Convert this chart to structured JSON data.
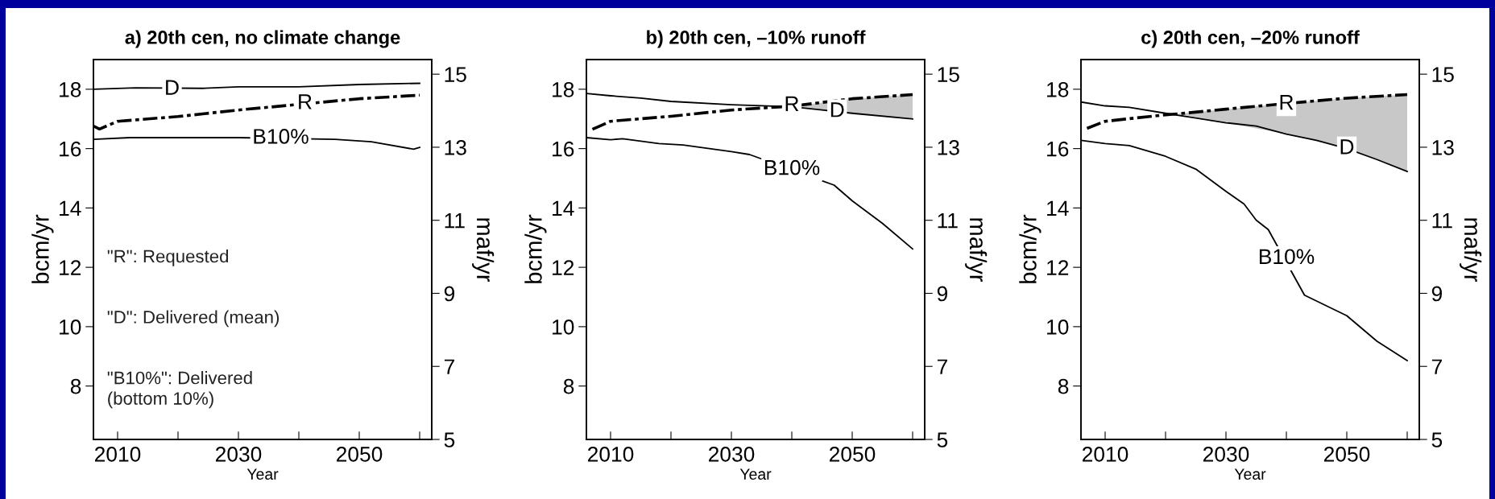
{
  "chart_data": [
    {
      "type": "line",
      "title": "a) 20th cen, no climate change",
      "xlabel": "Year",
      "ylabel": "bcm/yr",
      "y2label": "maf/yr",
      "xlim": [
        2006,
        2062
      ],
      "xticks": [
        2010,
        {
          "value": 2020,
          "label": null
        },
        2030,
        {
          "value": 2040,
          "label": null
        },
        2050,
        {
          "value": 2060,
          "label": null
        }
      ],
      "ylim": [
        6.2,
        19
      ],
      "yticks": [
        8,
        10,
        12,
        14,
        16,
        18
      ],
      "y2lim": [
        5,
        15.4
      ],
      "y2ticks": [
        5,
        7,
        9,
        11,
        13,
        15
      ],
      "series": [
        {
          "color": "#000000",
          "line_style": "solid",
          "x": [
            2006,
            2013,
            2024,
            2030,
            2040,
            2050,
            2060
          ],
          "values": [
            18.0,
            18.05,
            18.03,
            18.08,
            18.08,
            18.16,
            18.2
          ]
        },
        {
          "color": "#000000",
          "line_style": "dashdot",
          "x": [
            2006,
            2007,
            2010,
            2020,
            2030,
            2050,
            2060
          ],
          "values": [
            16.76,
            16.66,
            16.92,
            17.08,
            17.3,
            17.68,
            17.8
          ]
        },
        {
          "color": "#000000",
          "line_style": "solid",
          "x": [
            2006,
            2012,
            2030,
            2046,
            2052,
            2059,
            2060
          ],
          "values": [
            16.31,
            16.37,
            16.37,
            16.31,
            16.23,
            15.98,
            16.04
          ]
        }
      ],
      "annotations": [
        {
          "text": "D",
          "x": 2019,
          "y": 18.0
        },
        {
          "text": "R",
          "x": 2041,
          "y": 17.52
        },
        {
          "text": "B10%",
          "x": 2037,
          "y": 16.35
        },
        "\"R\": Requested",
        "\"D\": Delivered (mean)",
        "\"B10%\": Delivered\n(bottom 10%)"
      ]
    },
    {
      "type": "line",
      "title": "b) 20th cen, –10% runoff",
      "xlabel": "Year",
      "ylabel": "bcm/yr",
      "y2label": "maf/yr",
      "xlim": [
        2006,
        2062
      ],
      "xticks": [
        2010,
        {
          "value": 2020,
          "label": null
        },
        2030,
        {
          "value": 2040,
          "label": null
        },
        2050,
        {
          "value": 2060,
          "label": null
        }
      ],
      "ylim": [
        6.2,
        19
      ],
      "yticks": [
        8,
        10,
        12,
        14,
        16,
        18
      ],
      "y2lim": [
        5,
        15.4
      ],
      "y2ticks": [
        5,
        7,
        9,
        11,
        13,
        15
      ],
      "series": [
        {
          "color": "#000000",
          "line_style": "solid",
          "x": [
            2006,
            2010,
            2015,
            2020,
            2030,
            2040,
            2045,
            2050,
            2060
          ],
          "values": [
            17.86,
            17.78,
            17.7,
            17.59,
            17.48,
            17.41,
            17.3,
            17.19,
            17.0
          ]
        },
        {
          "color": "#000000",
          "line_style": "dashdot",
          "x": [
            2007,
            2010,
            2020,
            2030,
            2040,
            2050,
            2060
          ],
          "values": [
            16.65,
            16.92,
            17.09,
            17.3,
            17.43,
            17.68,
            17.82
          ],
          "lower": [
            null,
            null,
            null,
            null,
            17.42,
            17.19,
            17.0
          ],
          "upper": [
            null,
            null,
            null,
            null,
            17.42,
            17.68,
            17.82
          ]
        },
        {
          "color": "#000000",
          "line_style": "solid",
          "x": [
            2006,
            2010,
            2012,
            2018,
            2022,
            2030,
            2033,
            2047,
            2050,
            2055,
            2060
          ],
          "values": [
            16.37,
            16.3,
            16.33,
            16.17,
            16.12,
            15.9,
            15.8,
            14.77,
            14.24,
            13.48,
            12.62
          ]
        }
      ],
      "annotations": [
        {
          "text": "R",
          "x": 2040,
          "y": 17.45
        },
        {
          "text": "D",
          "x": 2047.5,
          "y": 17.25
        },
        {
          "text": "B10%",
          "x": 2040,
          "y": 15.3
        }
      ]
    },
    {
      "type": "line",
      "title": "c) 20th cen, –20% runoff",
      "xlabel": "Year",
      "ylabel": "bcm/yr",
      "y2label": "maf/yr",
      "xlim": [
        2006,
        2062
      ],
      "xticks": [
        2010,
        {
          "value": 2020,
          "label": null
        },
        2030,
        {
          "value": 2040,
          "label": null
        },
        2050,
        {
          "value": 2060,
          "label": null
        }
      ],
      "ylim": [
        6.2,
        19
      ],
      "yticks": [
        8,
        10,
        12,
        14,
        16,
        18
      ],
      "y2lim": [
        5,
        15.4
      ],
      "y2ticks": [
        5,
        7,
        9,
        11,
        13,
        15
      ],
      "series": [
        {
          "color": "#000000",
          "line_style": "solid",
          "x": [
            2006,
            2010,
            2014,
            2020,
            2025,
            2030,
            2035,
            2040,
            2045,
            2050,
            2055,
            2060
          ],
          "values": [
            17.57,
            17.44,
            17.39,
            17.19,
            17.03,
            16.87,
            16.76,
            16.49,
            16.28,
            16.0,
            15.63,
            15.23
          ]
        },
        {
          "color": "#000000",
          "line_style": "dashdot",
          "x": [
            2007,
            2010,
            2020,
            2022,
            2030,
            2040,
            2050,
            2060
          ],
          "values": [
            16.68,
            16.92,
            17.14,
            17.17,
            17.33,
            17.52,
            17.7,
            17.82
          ],
          "lower": [
            null,
            null,
            null,
            17.17,
            16.87,
            16.49,
            16.0,
            15.23
          ],
          "upper": [
            null,
            null,
            null,
            17.17,
            17.33,
            17.52,
            17.7,
            17.82
          ]
        },
        {
          "color": "#000000",
          "line_style": "solid",
          "x": [
            2006,
            2010,
            2014,
            2020,
            2025,
            2030,
            2033,
            2035,
            2037,
            2043,
            2050,
            2055,
            2060
          ],
          "values": [
            16.28,
            16.17,
            16.1,
            15.74,
            15.31,
            14.56,
            14.13,
            13.59,
            13.27,
            11.06,
            10.37,
            9.51,
            8.86
          ]
        }
      ],
      "annotations": [
        {
          "text": "R",
          "x": 2040,
          "y": 17.5
        },
        {
          "text": "D",
          "x": 2050,
          "y": 16.0
        },
        {
          "text": "B10%",
          "x": 2040,
          "y": 12.3
        }
      ]
    }
  ]
}
